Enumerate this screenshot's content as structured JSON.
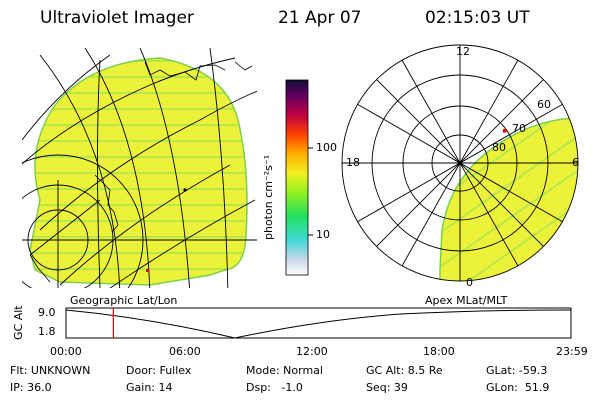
{
  "header": {
    "instrument": "Ultraviolet Imager",
    "date": "21 Apr 07",
    "time": "02:15:03 UT"
  },
  "colorbar": {
    "label": "photon cm⁻²s⁻¹",
    "ticks": [
      "100",
      "10"
    ]
  },
  "geo_panel": {
    "caption": "Geographic Lat/Lon"
  },
  "polar_panel": {
    "caption": "Apex MLat/MLT",
    "mlt_labels": {
      "top": "12",
      "left": "18",
      "right": "6",
      "bottom": "0"
    },
    "lat_labels": [
      "60",
      "70",
      "80"
    ]
  },
  "altitude_plot": {
    "ylabel": "GC Alt",
    "y_ticks": [
      "9.0",
      "1.8"
    ],
    "x_ticks": [
      "00:00",
      "06:00",
      "12:00",
      "18:00",
      "23:59"
    ],
    "current_time_marker_hours": 2.25
  },
  "info": {
    "row1": {
      "filter": "Flt: UNKNOWN",
      "door": "Door: Fullex",
      "mode": "Mode: Normal",
      "gc_alt": "GC Alt: 8.5 Re",
      "glat": "GLat: -59.3"
    },
    "row2": {
      "ip": "IP: 36.0",
      "gain": "Gain: 14",
      "dsp": "Dsp:   -1.0",
      "seq": "Seq: 39",
      "glon": "GLon:  51.9"
    }
  }
}
